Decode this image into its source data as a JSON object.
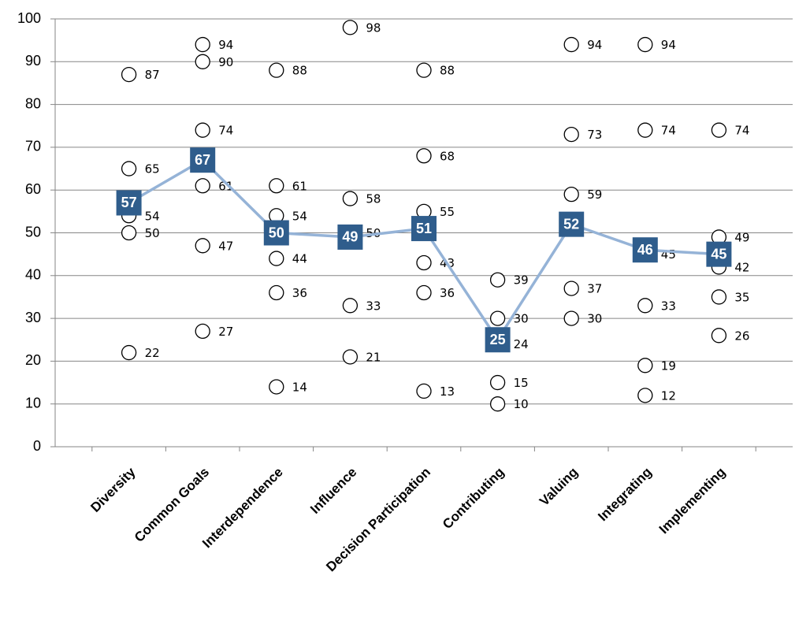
{
  "chart_data": {
    "type": "line",
    "categories": [
      "Diversity",
      "Common Goals",
      "Interdependence",
      "Influence",
      "Decision Participation",
      "Contributing",
      "Valuing",
      "Integrating",
      "Implementing"
    ],
    "averages": [
      57,
      67,
      50,
      49,
      51,
      25,
      52,
      46,
      45
    ],
    "scores": [
      [
        87,
        65,
        54,
        50,
        22
      ],
      [
        94,
        90,
        74,
        61,
        47,
        27
      ],
      [
        88,
        61,
        54,
        44,
        36,
        14
      ],
      [
        98,
        58,
        50,
        33,
        21
      ],
      [
        88,
        68,
        55,
        43,
        36,
        13
      ],
      [
        39,
        30,
        24,
        15,
        10
      ],
      [
        94,
        73,
        59,
        37,
        30
      ],
      [
        94,
        74,
        45,
        33,
        19,
        12
      ],
      [
        74,
        49,
        42,
        35,
        26
      ]
    ],
    "line_color": "#95b3d7",
    "box_color": "#2f5d8c",
    "ylim": [
      0,
      100
    ],
    "yticks": [
      0,
      10,
      20,
      30,
      40,
      50,
      60,
      70,
      80,
      90,
      100
    ],
    "grid": true
  }
}
